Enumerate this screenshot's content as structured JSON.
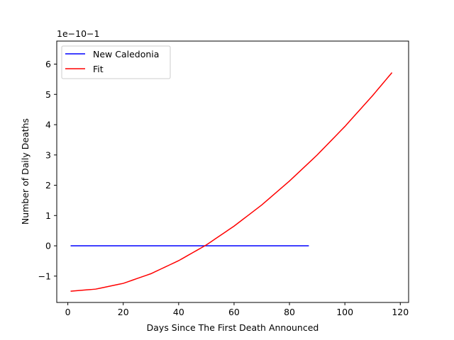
{
  "chart_data": {
    "type": "line",
    "xlabel": "Days Since The First Death Announced",
    "ylabel": "Number of Daily Deaths",
    "offset_text": "1e−10−1",
    "xlim": [
      -4,
      123
    ],
    "ylim": [
      -1.87,
      6.76
    ],
    "x_ticks": [
      0,
      20,
      40,
      60,
      80,
      100,
      120
    ],
    "x_tick_labels": [
      "0",
      "20",
      "40",
      "60",
      "80",
      "100",
      "120"
    ],
    "y_ticks": [
      -1,
      0,
      1,
      2,
      3,
      4,
      5,
      6
    ],
    "y_tick_labels": [
      "−1",
      "0",
      "1",
      "2",
      "3",
      "4",
      "5",
      "6"
    ],
    "grid": false,
    "legend_placement": "upper left",
    "series": [
      {
        "name": "New Caledonia",
        "color": "#0000ff",
        "x": [
          1,
          87
        ],
        "y": [
          0,
          0
        ]
      },
      {
        "name": "Fit",
        "color": "#ff0000",
        "x": [
          1,
          10,
          20,
          30,
          40,
          50,
          60,
          70,
          80,
          90,
          100,
          110,
          117
        ],
        "y": [
          -1.5,
          -1.43,
          -1.24,
          -0.92,
          -0.49,
          0.03,
          0.65,
          1.35,
          2.14,
          3.0,
          3.94,
          4.96,
          5.72
        ]
      }
    ]
  }
}
